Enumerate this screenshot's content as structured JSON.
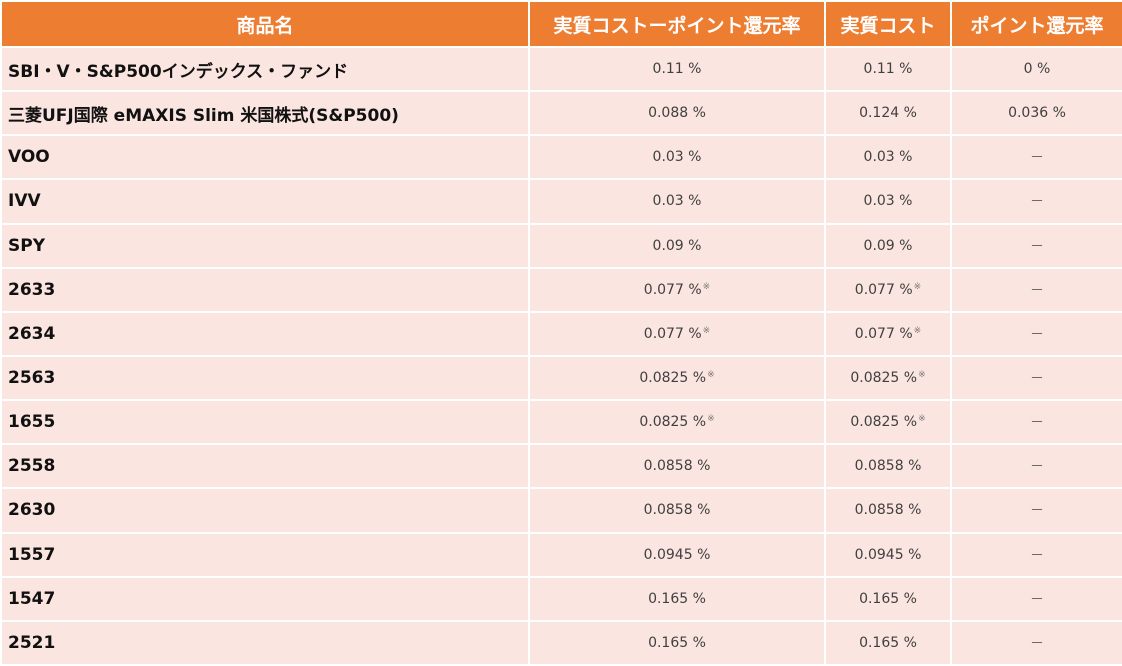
{
  "headers": [
    "商品名",
    "実質コストーポイント還元率",
    "実質コスト",
    "ポイント還元率"
  ],
  "rows": [
    {
      "name": "SBI・V・S&P500インデックス・ファンド",
      "net_value": "0.11",
      "net_unit": "%",
      "net_mark": "",
      "cost_value": "0.11",
      "cost_unit": "%",
      "cost_mark": "",
      "points": "0 %"
    },
    {
      "name": "三菱UFJ国際 eMAXIS Slim 米国株式(S&P500)",
      "net_value": "0.088",
      "net_unit": "%",
      "net_mark": "",
      "cost_value": "0.124",
      "cost_unit": "%",
      "cost_mark": "",
      "points": "0.036 %"
    },
    {
      "name": "VOO",
      "net_value": "0.03",
      "net_unit": "%",
      "net_mark": "",
      "cost_value": "0.03",
      "cost_unit": "%",
      "cost_mark": "",
      "points": "－"
    },
    {
      "name": "IVV",
      "net_value": "0.03",
      "net_unit": "%",
      "net_mark": "",
      "cost_value": "0.03",
      "cost_unit": "%",
      "cost_mark": "",
      "points": "－"
    },
    {
      "name": "SPY",
      "net_value": "0.09",
      "net_unit": "%",
      "net_mark": "",
      "cost_value": "0.09",
      "cost_unit": "%",
      "cost_mark": "",
      "points": "－"
    },
    {
      "name": "2633",
      "net_value": "0.077",
      "net_unit": "%",
      "net_mark": "※",
      "cost_value": "0.077",
      "cost_unit": "%",
      "cost_mark": "※",
      "points": "－"
    },
    {
      "name": "2634",
      "net_value": "0.077",
      "net_unit": "%",
      "net_mark": "※",
      "cost_value": "0.077",
      "cost_unit": "%",
      "cost_mark": "※",
      "points": "－"
    },
    {
      "name": "2563",
      "net_value": "0.0825",
      "net_unit": "%",
      "net_mark": "※",
      "cost_value": "0.0825",
      "cost_unit": "%",
      "cost_mark": "※",
      "points": "－"
    },
    {
      "name": "1655",
      "net_value": "0.0825",
      "net_unit": "%",
      "net_mark": "※",
      "cost_value": "0.0825",
      "cost_unit": "%",
      "cost_mark": "※",
      "points": "－"
    },
    {
      "name": "2558",
      "net_value": "0.0858",
      "net_unit": "%",
      "net_mark": "",
      "cost_value": "0.0858",
      "cost_unit": "%",
      "cost_mark": "",
      "points": "－"
    },
    {
      "name": "2630",
      "net_value": "0.0858",
      "net_unit": "%",
      "net_mark": "",
      "cost_value": "0.0858",
      "cost_unit": "%",
      "cost_mark": "",
      "points": "－"
    },
    {
      "name": "1557",
      "net_value": "0.0945",
      "net_unit": "%",
      "net_mark": "",
      "cost_value": "0.0945",
      "cost_unit": "%",
      "cost_mark": "",
      "points": "－"
    },
    {
      "name": "1547",
      "net_value": "0.165",
      "net_unit": "%",
      "net_mark": "",
      "cost_value": "0.165",
      "cost_unit": "%",
      "cost_mark": "",
      "points": "－"
    },
    {
      "name": "2521",
      "net_value": "0.165",
      "net_unit": "%",
      "net_mark": "",
      "cost_value": "0.165",
      "cost_unit": "%",
      "cost_mark": "",
      "points": "－"
    }
  ],
  "colors": {
    "header_bg": "#ed7d31",
    "row_bg": "#fbe5e0",
    "border": "#ffffff"
  }
}
